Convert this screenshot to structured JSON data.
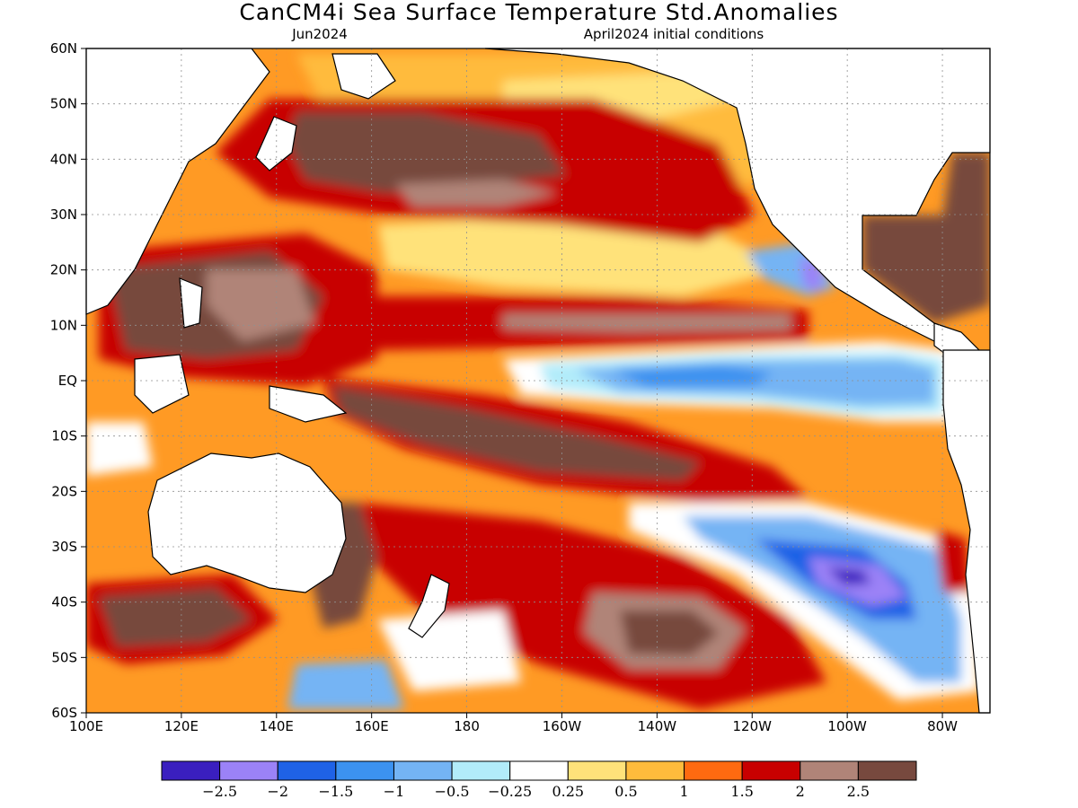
{
  "title": "CanCM4i Sea Surface Temperature Std.Anomalies",
  "subtitle_left": "Jun2024",
  "subtitle_right": "April2024 initial conditions",
  "map": {
    "type": "filled-contour-map",
    "variable": "Sea Surface Temperature Std.Anomalies",
    "lon_range": [
      100,
      290
    ],
    "lat_range": [
      -60,
      60
    ],
    "lat_ticks": [
      {
        "value": 60,
        "label": "60N"
      },
      {
        "value": 50,
        "label": "50N"
      },
      {
        "value": 40,
        "label": "40N"
      },
      {
        "value": 30,
        "label": "30N"
      },
      {
        "value": 20,
        "label": "20N"
      },
      {
        "value": 10,
        "label": "10N"
      },
      {
        "value": 0,
        "label": "EQ"
      },
      {
        "value": -10,
        "label": "10S"
      },
      {
        "value": -20,
        "label": "20S"
      },
      {
        "value": -30,
        "label": "30S"
      },
      {
        "value": -40,
        "label": "40S"
      },
      {
        "value": -50,
        "label": "50S"
      },
      {
        "value": -60,
        "label": "60S"
      }
    ],
    "lon_ticks": [
      {
        "value": 100,
        "label": "100E"
      },
      {
        "value": 120,
        "label": "120E"
      },
      {
        "value": 140,
        "label": "140E"
      },
      {
        "value": 160,
        "label": "160E"
      },
      {
        "value": 180,
        "label": "180"
      },
      {
        "value": 200,
        "label": "160W"
      },
      {
        "value": 220,
        "label": "140W"
      },
      {
        "value": 240,
        "label": "120W"
      },
      {
        "value": 260,
        "label": "100W"
      },
      {
        "value": 280,
        "label": "80W"
      }
    ],
    "grid": "dotted"
  },
  "colorbar": {
    "colors": [
      "#3a1fbf",
      "#9b82f7",
      "#1f62e6",
      "#3c92f0",
      "#74b4f4",
      "#b2ecfa",
      "#ffffff",
      "#ffe27a",
      "#ffbb3c",
      "#ff6a10",
      "#c80000",
      "#b08478",
      "#77493e"
    ],
    "labels": [
      "−2.5",
      "−2",
      "−1.5",
      "−1",
      "−0.5",
      "−0.25",
      "0.25",
      "0.5",
      "1",
      "1.5",
      "2",
      "2.5"
    ]
  }
}
